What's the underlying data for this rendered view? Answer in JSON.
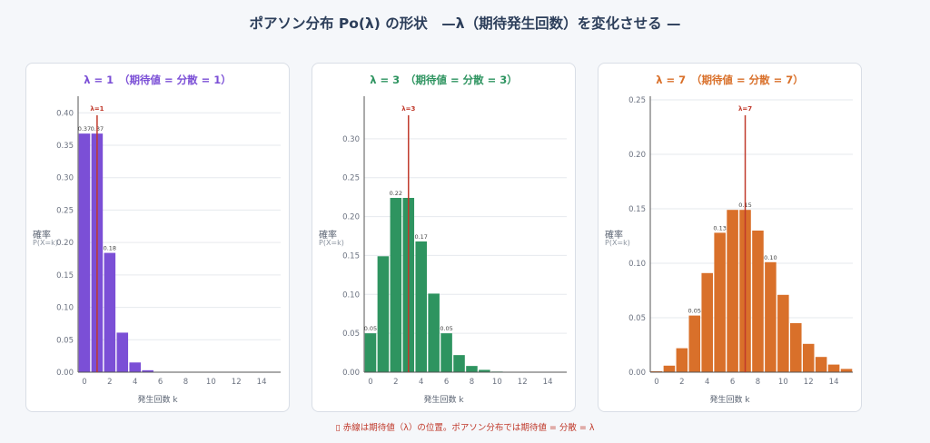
{
  "title": "ポアソン分布 Po(λ) の形状　—λ（期待発生回数）を変化させる —",
  "footnote": "▯ 赤線は期待値（λ）の位置。ポアソン分布では期待値 = 分散 = λ",
  "chart_data": [
    {
      "type": "bar",
      "title": "λ = 1　（期待値 = 分散 = 1）",
      "color": "#7b4fd6",
      "ylabel": "確率",
      "ylabel_sub": "P(X=k)",
      "xlabel": "発生回数 k",
      "lambda": 1,
      "mean_label": "λ=1",
      "x": [
        0,
        1,
        2,
        3,
        4,
        5,
        6,
        7,
        8,
        9,
        10,
        11,
        12,
        13,
        14,
        15
      ],
      "values": [
        0.368,
        0.368,
        0.184,
        0.061,
        0.015,
        0.003,
        0.0005,
        0.0001,
        0,
        0,
        0,
        0,
        0,
        0,
        0,
        0
      ],
      "data_labels": {
        "0": "0.37",
        "1": "0.37",
        "2": "0.18"
      },
      "xlim": [
        -0.5,
        15.5
      ],
      "ylim": [
        0,
        0.42
      ],
      "yticks": [
        0,
        0.05,
        0.1,
        0.15,
        0.2,
        0.25,
        0.3,
        0.35,
        0.4
      ],
      "yticklabels": [
        "0.00",
        "0.05",
        "0.10",
        "0.15",
        "0.20",
        "0.25",
        "0.30",
        "0.35",
        "0.40"
      ],
      "xticks": [
        0,
        2,
        4,
        6,
        8,
        10,
        12,
        14
      ],
      "grid": true
    },
    {
      "type": "bar",
      "title": "λ = 3　（期待値 = 分散 = 3）",
      "color": "#2e9460",
      "ylabel": "確率",
      "ylabel_sub": "P(X=k)",
      "xlabel": "発生回数 k",
      "lambda": 3,
      "mean_label": "λ=3",
      "x": [
        0,
        1,
        2,
        3,
        4,
        5,
        6,
        7,
        8,
        9,
        10,
        11,
        12,
        13,
        14,
        15
      ],
      "values": [
        0.05,
        0.149,
        0.224,
        0.224,
        0.168,
        0.101,
        0.05,
        0.022,
        0.008,
        0.003,
        0.0008,
        0.0002,
        0.0001,
        0,
        0,
        0
      ],
      "data_labels": {
        "0": "0.05",
        "2": "0.22",
        "4": "0.17",
        "6": "0.05"
      },
      "xlim": [
        -0.5,
        15.5
      ],
      "ylim": [
        0,
        0.35
      ],
      "yticks": [
        0,
        0.05,
        0.1,
        0.15,
        0.2,
        0.25,
        0.3
      ],
      "yticklabels": [
        "0.00",
        "0.05",
        "0.10",
        "0.15",
        "0.20",
        "0.25",
        "0.30"
      ],
      "xticks": [
        0,
        2,
        4,
        6,
        8,
        10,
        12,
        14
      ],
      "grid": true
    },
    {
      "type": "bar",
      "title": "λ = 7　（期待値 = 分散 = 7）",
      "color": "#d9702a",
      "ylabel": "確率",
      "ylabel_sub": "P(X=k)",
      "xlabel": "発生回数 k",
      "lambda": 7,
      "mean_label": "λ=7",
      "x": [
        0,
        1,
        2,
        3,
        4,
        5,
        6,
        7,
        8,
        9,
        10,
        11,
        12,
        13,
        14,
        15
      ],
      "values": [
        0.0009,
        0.006,
        0.022,
        0.052,
        0.091,
        0.128,
        0.149,
        0.149,
        0.13,
        0.101,
        0.071,
        0.045,
        0.026,
        0.014,
        0.007,
        0.003
      ],
      "data_labels": {
        "3": "0.05",
        "5": "0.13",
        "7": "0.15",
        "9": "0.10"
      },
      "xlim": [
        -0.5,
        15.5
      ],
      "ylim": [
        0,
        0.25
      ],
      "yticks": [
        0,
        0.05,
        0.1,
        0.15,
        0.2,
        0.25
      ],
      "yticklabels": [
        "0.00",
        "0.05",
        "0.10",
        "0.15",
        "0.20",
        "0.25"
      ],
      "xticks": [
        0,
        2,
        4,
        6,
        8,
        10,
        12,
        14
      ],
      "grid": true
    }
  ]
}
